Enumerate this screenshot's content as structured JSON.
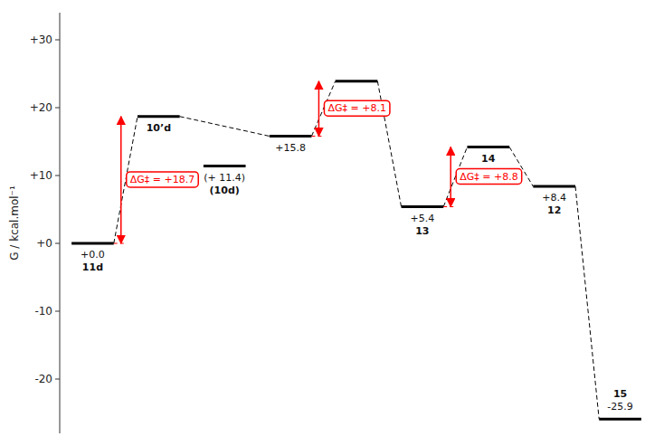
{
  "chart_data": {
    "type": "energy_profile",
    "ylabel": "G / kcal.mol⁻¹",
    "ylim": [
      -28,
      34
    ],
    "yticks": [
      -20,
      -10,
      {
        "value": 0,
        "label": "+0"
      },
      {
        "value": 10,
        "label": "+10"
      },
      {
        "value": 20,
        "label": "+20"
      },
      {
        "value": 30,
        "label": "+30"
      }
    ],
    "tick_labels": "y",
    "color": "black",
    "categories": [
      "11d",
      "10’d",
      "(10d)",
      null,
      null,
      "13",
      "14",
      "12",
      "15"
    ],
    "values": [
      0.0,
      18.7,
      11.4,
      15.8,
      23.9,
      5.4,
      14.2,
      8.4,
      -25.9
    ],
    "data_labels": true,
    "value_labels": [
      "+0.0",
      null,
      "(+ 11.4)",
      "+15.8",
      null,
      "+5.4",
      null,
      "+8.4",
      "-25.9"
    ],
    "connections": [
      [
        0,
        1
      ],
      [
        1,
        3
      ],
      [
        3,
        4
      ],
      [
        4,
        5
      ],
      [
        5,
        6
      ],
      [
        6,
        7
      ],
      [
        7,
        8
      ]
    ],
    "barriers": [
      {
        "from": 0,
        "to": 1,
        "label": "ΔG‡ = +18.7",
        "color": "red"
      },
      {
        "from": 3,
        "to": 4,
        "label": "ΔG‡ = +8.1",
        "color": "red"
      },
      {
        "from": 5,
        "to": 6,
        "label": "ΔG‡ = +8.8",
        "color": "red"
      }
    ]
  }
}
